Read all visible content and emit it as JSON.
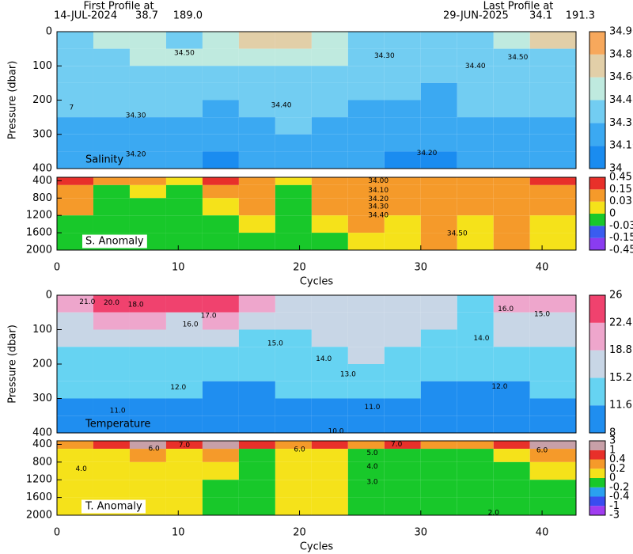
{
  "header": {
    "first_label": "First Profile at",
    "first_date": "14-JUL-2024",
    "first_lat": "38.7",
    "first_lon": "189.0",
    "last_label": "Last Profile at",
    "last_date": "29-JUN-2025",
    "last_lat": "34.1",
    "last_lon": "191.3"
  },
  "chart_data": [
    {
      "type": "heatmap",
      "label": "Salinity",
      "ylabel": "Pressure (dbar)",
      "xlim": [
        0,
        42.8
      ],
      "ylim": [
        0,
        400
      ],
      "yticks": [
        0,
        100,
        200,
        300,
        400
      ],
      "xbins": [
        0,
        3,
        6,
        9,
        12,
        15,
        18,
        21,
        24,
        27,
        30,
        33,
        36,
        39,
        43
      ],
      "ybins": [
        0,
        50,
        100,
        150,
        200,
        250,
        300,
        350,
        400
      ],
      "levels": [
        34,
        34.16,
        34.32,
        34.48,
        34.64,
        34.8,
        34.96
      ],
      "colors": [
        "#1a8cf0",
        "#3ba9f2",
        "#72cdf2",
        "#bfeadf",
        "#e2cfa8",
        "#f7a85c"
      ],
      "values": [
        [
          34.45,
          34.5,
          34.5,
          34.45,
          34.55,
          34.65,
          34.7,
          34.6,
          34.4,
          34.35,
          34.4,
          34.45,
          34.6,
          34.7
        ],
        [
          34.4,
          34.45,
          34.5,
          34.5,
          34.5,
          34.6,
          34.6,
          34.55,
          34.4,
          34.35,
          34.35,
          34.4,
          34.45,
          34.45
        ],
        [
          34.38,
          34.4,
          34.42,
          34.42,
          34.42,
          34.45,
          34.45,
          34.45,
          34.38,
          34.35,
          34.33,
          34.38,
          34.4,
          34.4
        ],
        [
          34.35,
          34.36,
          34.38,
          34.38,
          34.36,
          34.4,
          34.42,
          34.4,
          34.35,
          34.32,
          34.3,
          34.36,
          34.37,
          34.37
        ],
        [
          34.32,
          34.33,
          34.34,
          34.34,
          34.3,
          34.35,
          34.36,
          34.35,
          34.3,
          34.28,
          34.25,
          34.32,
          34.33,
          34.34
        ],
        [
          34.28,
          34.3,
          34.3,
          34.3,
          34.25,
          34.3,
          34.32,
          34.3,
          34.27,
          34.25,
          34.22,
          34.28,
          34.29,
          34.3
        ],
        [
          34.22,
          34.24,
          34.25,
          34.25,
          34.2,
          34.25,
          34.26,
          34.25,
          34.22,
          34.2,
          34.18,
          34.22,
          34.24,
          34.25
        ],
        [
          34.18,
          34.2,
          34.2,
          34.2,
          34.15,
          34.18,
          34.2,
          34.2,
          34.18,
          34.15,
          34.12,
          34.18,
          34.2,
          34.2
        ]
      ],
      "annotations": [
        {
          "text": "34.50",
          "x": 10.5,
          "y": 62
        },
        {
          "text": "34.30",
          "x": 27,
          "y": 70
        },
        {
          "text": "34.40",
          "x": 34.5,
          "y": 100
        },
        {
          "text": "34.50",
          "x": 38,
          "y": 75
        },
        {
          "text": "34.40",
          "x": 18.5,
          "y": 215
        },
        {
          "text": "34.30",
          "x": 6.5,
          "y": 245
        },
        {
          "text": "34.20",
          "x": 6.5,
          "y": 358
        },
        {
          "text": "34.20",
          "x": 30.5,
          "y": 355
        },
        {
          "text": "7",
          "x": 1.2,
          "y": 222
        }
      ]
    },
    {
      "type": "heatmap",
      "label": "S. Anomaly",
      "xlabel": "Cycles",
      "xlim": [
        0,
        42.8
      ],
      "ylim": [
        320,
        2000
      ],
      "yticks": [
        400,
        800,
        1200,
        1600,
        2000
      ],
      "xticks": [
        0,
        10,
        20,
        30,
        40
      ],
      "xbins": [
        0,
        3,
        6,
        9,
        12,
        15,
        18,
        21,
        24,
        27,
        30,
        33,
        36,
        39,
        43
      ],
      "ybins": [
        320,
        500,
        800,
        1200,
        1600,
        2000
      ],
      "levels": [
        -0.45,
        -0.15,
        -0.03,
        0,
        0.03,
        0.15,
        0.45
      ],
      "colors": [
        "#8a3cf0",
        "#3a5cf0",
        "#18c82a",
        "#f5e21a",
        "#f59a2a",
        "#e8302a"
      ],
      "values": [
        [
          0.2,
          0.05,
          0.05,
          0.02,
          0.2,
          0.05,
          0.02,
          0.05,
          0.05,
          0.1,
          0.05,
          0.05,
          0.1,
          0.2
        ],
        [
          0.05,
          -0.01,
          0.02,
          -0.01,
          0.05,
          0.05,
          -0.01,
          0.05,
          0.1,
          0.1,
          0.05,
          0.05,
          0.1,
          0.1
        ],
        [
          0.05,
          -0.01,
          -0.01,
          -0.01,
          0.02,
          0.05,
          -0.01,
          0.05,
          0.1,
          0.05,
          0.05,
          0.05,
          0.05,
          0.05
        ],
        [
          -0.01,
          -0.01,
          -0.01,
          -0.01,
          -0.01,
          0.02,
          -0.01,
          0.02,
          0.05,
          0.02,
          0.05,
          0.02,
          0.05,
          0.02
        ],
        [
          -0.01,
          -0.01,
          -0.01,
          -0.01,
          -0.01,
          -0.01,
          -0.01,
          -0.01,
          0.02,
          0.02,
          0.05,
          0.02,
          0.05,
          0.02
        ]
      ],
      "annotations": [
        {
          "text": "34.00",
          "x": 26.5,
          "y": 400
        },
        {
          "text": "34.10",
          "x": 26.5,
          "y": 620
        },
        {
          "text": "34.20",
          "x": 26.5,
          "y": 820
        },
        {
          "text": "34.30",
          "x": 26.5,
          "y": 1000
        },
        {
          "text": "34.40",
          "x": 26.5,
          "y": 1200
        },
        {
          "text": "34.50",
          "x": 33,
          "y": 1620
        }
      ]
    },
    {
      "type": "heatmap",
      "label": "Temperature",
      "ylabel": "Pressure (dbar)",
      "xlim": [
        0,
        42.8
      ],
      "ylim": [
        0,
        400
      ],
      "yticks": [
        0,
        100,
        200,
        300,
        400
      ],
      "xbins": [
        0,
        3,
        6,
        9,
        12,
        15,
        18,
        21,
        24,
        27,
        30,
        33,
        36,
        39,
        43
      ],
      "ybins": [
        0,
        50,
        100,
        150,
        200,
        250,
        300,
        350,
        400
      ],
      "levels": [
        8,
        11.6,
        15.2,
        18.8,
        22.4,
        26
      ],
      "colors": [
        "#1f8ef0",
        "#66d3f2",
        "#c8d6e6",
        "#eea6cc",
        "#f0426e"
      ],
      "values": [
        [
          22,
          23,
          24,
          24,
          25,
          19,
          18,
          17,
          16,
          16,
          16,
          15,
          19,
          21
        ],
        [
          18,
          19,
          19,
          18,
          20,
          17,
          16,
          16,
          17,
          16,
          16,
          15,
          16,
          16
        ],
        [
          16,
          16,
          16,
          16,
          15.5,
          15,
          15,
          15.5,
          17,
          16,
          15,
          15,
          15.5,
          15.5
        ],
        [
          15,
          14.5,
          14.5,
          14.5,
          14,
          13.5,
          14,
          14,
          15.5,
          14.5,
          14,
          13,
          14,
          14.5
        ],
        [
          13,
          13,
          13,
          13,
          12.5,
          12.5,
          13,
          13,
          14,
          13,
          12.5,
          12,
          12.5,
          13
        ],
        [
          12,
          12,
          12,
          12,
          11.5,
          11.5,
          12,
          12,
          12,
          11.8,
          11.5,
          11,
          11.5,
          12
        ],
        [
          11,
          11,
          11,
          11,
          10.5,
          11,
          11,
          11,
          11,
          11,
          10.5,
          10.5,
          10.8,
          11
        ],
        [
          10,
          10.2,
          10.2,
          10,
          9.8,
          10,
          10,
          10.2,
          10,
          10,
          9.8,
          9.8,
          10,
          10
        ]
      ],
      "annotations": [
        {
          "text": "21.0",
          "x": 2.5,
          "y": 20
        },
        {
          "text": "20.0",
          "x": 4.5,
          "y": 22
        },
        {
          "text": "18.0",
          "x": 6.5,
          "y": 28
        },
        {
          "text": "17.0",
          "x": 12.5,
          "y": 60
        },
        {
          "text": "16.0",
          "x": 11,
          "y": 85
        },
        {
          "text": "15.0",
          "x": 18,
          "y": 140
        },
        {
          "text": "14.0",
          "x": 22,
          "y": 185
        },
        {
          "text": "13.0",
          "x": 24,
          "y": 230
        },
        {
          "text": "12.0",
          "x": 10,
          "y": 268
        },
        {
          "text": "11.0",
          "x": 5,
          "y": 336
        },
        {
          "text": "11.0",
          "x": 26,
          "y": 325
        },
        {
          "text": "10.0",
          "x": 23,
          "y": 395
        },
        {
          "text": "16.0",
          "x": 37,
          "y": 40
        },
        {
          "text": "15.0",
          "x": 40,
          "y": 55
        },
        {
          "text": "14.0",
          "x": 35,
          "y": 125
        },
        {
          "text": "12.0",
          "x": 36.5,
          "y": 265
        }
      ]
    },
    {
      "type": "heatmap",
      "label": "T. Anomaly",
      "xlabel": "Cycles",
      "xlim": [
        0,
        42.8
      ],
      "ylim": [
        320,
        2000
      ],
      "yticks": [
        400,
        800,
        1200,
        1600,
        2000
      ],
      "xticks": [
        0,
        10,
        20,
        30,
        40
      ],
      "xbins": [
        0,
        3,
        6,
        9,
        12,
        15,
        18,
        21,
        24,
        27,
        30,
        33,
        36,
        39,
        43
      ],
      "ybins": [
        320,
        500,
        800,
        1200,
        1600,
        2000
      ],
      "levels": [
        -3,
        -1,
        -0.4,
        -0.2,
        0,
        0.2,
        0.4,
        1,
        3
      ],
      "colors": [
        "#a03cf0",
        "#3a4cf0",
        "#2aa0f0",
        "#18c82a",
        "#f5e21a",
        "#f59a2a",
        "#e8302a",
        "#c8a0a8"
      ],
      "values": [
        [
          0.3,
          0.5,
          1,
          0.5,
          1.5,
          0.5,
          0.3,
          0.5,
          0.3,
          0.5,
          0.3,
          0.3,
          0.5,
          1.5
        ],
        [
          0.1,
          0.1,
          0.3,
          0.1,
          0.3,
          -0.1,
          0.1,
          0.1,
          -0.1,
          -0.1,
          -0.1,
          -0.1,
          0.1,
          0.3
        ],
        [
          0.1,
          0.1,
          0.1,
          0.1,
          0.1,
          -0.1,
          0.1,
          0.1,
          -0.1,
          -0.1,
          -0.1,
          -0.1,
          -0.1,
          0.1
        ],
        [
          0.1,
          0.1,
          0.1,
          0.1,
          -0.1,
          -0.1,
          0.1,
          0.1,
          -0.1,
          -0.1,
          -0.1,
          -0.1,
          -0.1,
          -0.1
        ],
        [
          0.1,
          0.1,
          0.1,
          0.1,
          -0.1,
          -0.1,
          0.1,
          0.1,
          -0.1,
          -0.1,
          -0.1,
          -0.1,
          -0.1,
          -0.1
        ]
      ],
      "annotations": [
        {
          "text": "4.0",
          "x": 2,
          "y": 950
        },
        {
          "text": "6.0",
          "x": 8,
          "y": 500
        },
        {
          "text": "7.0",
          "x": 10.5,
          "y": 420
        },
        {
          "text": "6.0",
          "x": 20,
          "y": 520
        },
        {
          "text": "7.0",
          "x": 28,
          "y": 400
        },
        {
          "text": "5.0",
          "x": 26,
          "y": 600
        },
        {
          "text": "4.0",
          "x": 26,
          "y": 900
        },
        {
          "text": "3.0",
          "x": 26,
          "y": 1250
        },
        {
          "text": "2.0",
          "x": 36,
          "y": 1950
        },
        {
          "text": "6.0",
          "x": 40,
          "y": 530
        }
      ]
    }
  ]
}
